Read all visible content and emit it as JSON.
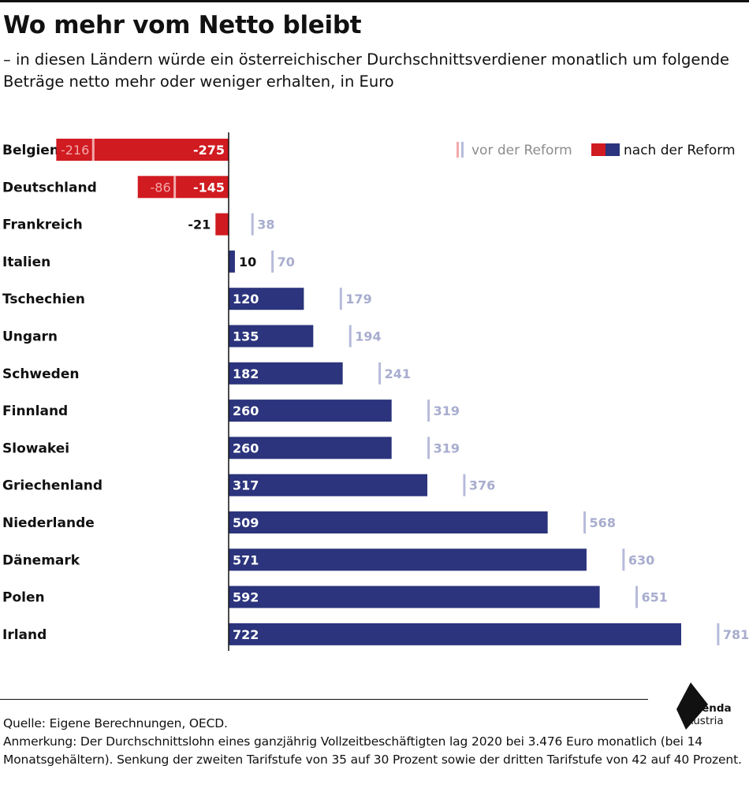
{
  "title": "Wo mehr vom Netto bleibt",
  "subtitle": "– in diesen Ländern würde ein österreichischer Durchschnittsverdiener monatlich um folgende Beträge netto mehr oder weniger erhalten, in Euro",
  "source": "Quelle: Eigene Berechnungen, OECD.",
  "note": "Anmerkung: Der Durchschnittslohn eines ganzjährig Vollzeitbeschäftigten lag 2020 bei 3.476 Euro monatlich (bei 14 Monatsgehältern). Senkung der zweiten Tarifstufe von 35 auf 30 Prozent sowie der dritten Tarifstufe von 42 auf 40 Prozent.",
  "logo": {
    "line1": "Agenda",
    "line2": "Austria"
  },
  "colors": {
    "positive": "#2b347c",
    "negative": "#d01b21",
    "marker_positive": "#b7bbda",
    "marker_negative": "#f2a9ab",
    "marker_label": "#a8adcf",
    "legend_muted": "#8c8c8c"
  },
  "chart_data": {
    "type": "bar",
    "orientation": "horizontal",
    "categories": [
      "Belgien",
      "Deutschland",
      "Frankreich",
      "Italien",
      "Tschechien",
      "Ungarn",
      "Schweden",
      "Finnland",
      "Slowakei",
      "Griechenland",
      "Niederlande",
      "Dänemark",
      "Polen",
      "Irland"
    ],
    "series": [
      {
        "name": "vor der Reform",
        "values": [
          -216,
          -86,
          38,
          70,
          179,
          194,
          241,
          319,
          319,
          376,
          568,
          630,
          651,
          781
        ]
      },
      {
        "name": "nach der Reform",
        "values": [
          -275,
          -145,
          -21,
          10,
          120,
          135,
          182,
          260,
          260,
          317,
          509,
          571,
          592,
          722
        ]
      }
    ],
    "xlim": [
      -275,
      800
    ],
    "legend": "top-right",
    "grid": false
  }
}
